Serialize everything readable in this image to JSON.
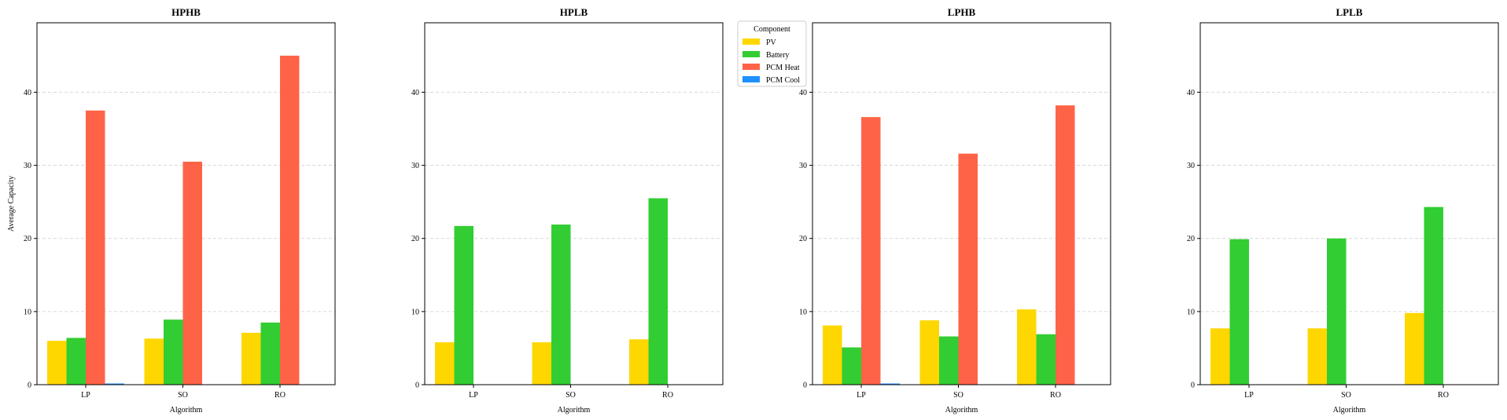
{
  "chart_data": {
    "type": "bar",
    "categories": [
      "LP",
      "SO",
      "RO"
    ],
    "xlabel": "Algorithm",
    "ylabel": "Average Capacity",
    "ylim": [
      0,
      49.5
    ],
    "yticks": [
      0,
      10,
      20,
      30,
      40
    ],
    "grid": "y-dashed",
    "legend": {
      "title": "Component",
      "placement": "between-second-and-third-panel-top",
      "entries": [
        {
          "name": "PV",
          "color": "#FFD700"
        },
        {
          "name": "Battery",
          "color": "#32CD32"
        },
        {
          "name": "PCM Heat",
          "color": "#FF6347"
        },
        {
          "name": "PCM Cool",
          "color": "#1E90FF"
        }
      ]
    },
    "panels": [
      {
        "title": "HPHB",
        "show_ylabel": true,
        "series": [
          {
            "name": "PV",
            "values": [
              6.0,
              6.3,
              7.1
            ]
          },
          {
            "name": "Battery",
            "values": [
              6.4,
              8.9,
              8.5
            ]
          },
          {
            "name": "PCM Heat",
            "values": [
              37.5,
              30.5,
              45.0
            ]
          },
          {
            "name": "PCM Cool",
            "values": [
              0.15,
              0,
              0
            ]
          }
        ]
      },
      {
        "title": "HPLB",
        "show_ylabel": false,
        "series": [
          {
            "name": "PV",
            "values": [
              5.8,
              5.8,
              6.2
            ]
          },
          {
            "name": "Battery",
            "values": [
              21.7,
              21.9,
              25.5
            ]
          },
          {
            "name": "PCM Heat",
            "values": [
              0,
              0,
              0
            ]
          },
          {
            "name": "PCM Cool",
            "values": [
              0,
              0,
              0
            ]
          }
        ]
      },
      {
        "title": "LPHB",
        "show_ylabel": false,
        "series": [
          {
            "name": "PV",
            "values": [
              8.1,
              8.8,
              10.3
            ]
          },
          {
            "name": "Battery",
            "values": [
              5.1,
              6.6,
              6.9
            ]
          },
          {
            "name": "PCM Heat",
            "values": [
              36.6,
              31.6,
              38.2
            ]
          },
          {
            "name": "PCM Cool",
            "values": [
              0.15,
              0,
              0
            ]
          }
        ]
      },
      {
        "title": "LPLB",
        "show_ylabel": false,
        "series": [
          {
            "name": "PV",
            "values": [
              7.7,
              7.7,
              9.8
            ]
          },
          {
            "name": "Battery",
            "values": [
              19.9,
              20.0,
              24.3
            ]
          },
          {
            "name": "PCM Heat",
            "values": [
              0,
              0,
              0
            ]
          },
          {
            "name": "PCM Cool",
            "values": [
              0,
              0,
              0
            ]
          }
        ]
      }
    ]
  }
}
